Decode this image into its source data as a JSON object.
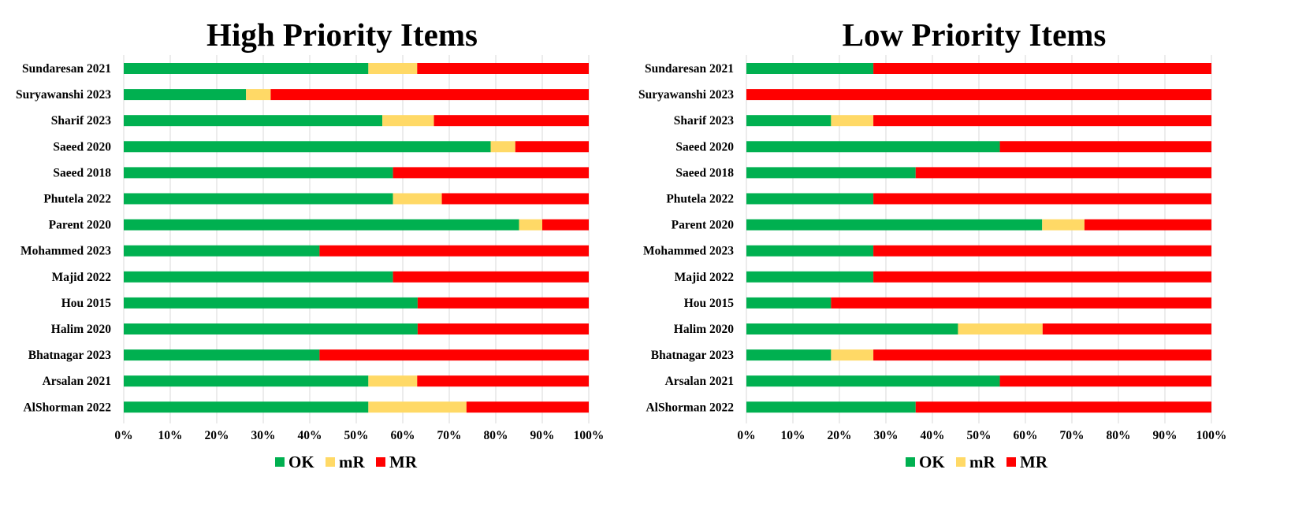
{
  "chart_data": [
    {
      "type": "bar",
      "orientation": "horizontal",
      "stacked": "percent",
      "title": "High Priority Items",
      "categories": [
        "Sundaresan 2021",
        "Suryawanshi 2023",
        "Sharif 2023",
        "Saeed 2020",
        "Saeed 2018",
        "Phutela 2022",
        "Parent 2020",
        "Mohammed 2023",
        "Majid 2022",
        "Hou 2015",
        "Halim 2020",
        "Bhatnagar 2023",
        "Arsalan 2021",
        "AlShorman 2022"
      ],
      "series": [
        {
          "name": "OK",
          "color": "#00b050",
          "values": [
            52.6,
            26.3,
            55.6,
            78.9,
            57.9,
            57.9,
            85.0,
            42.1,
            57.9,
            63.2,
            63.2,
            42.1,
            52.6,
            52.6
          ]
        },
        {
          "name": "mR",
          "color": "#ffd966",
          "values": [
            10.5,
            5.3,
            11.1,
            5.3,
            0,
            10.5,
            5.0,
            0,
            0,
            0,
            0,
            0,
            10.5,
            21.1
          ]
        },
        {
          "name": "MR",
          "color": "#ff0000",
          "values": [
            36.9,
            68.4,
            33.3,
            15.8,
            42.1,
            31.6,
            10.0,
            57.9,
            42.1,
            36.8,
            36.8,
            57.9,
            36.9,
            26.3
          ]
        }
      ],
      "xticks": [
        "0%",
        "10%",
        "20%",
        "30%",
        "40%",
        "50%",
        "60%",
        "70%",
        "80%",
        "90%",
        "100%"
      ],
      "xlim": [
        0,
        100
      ],
      "legend": "bottom-center",
      "grid": true
    },
    {
      "type": "bar",
      "orientation": "horizontal",
      "stacked": "percent",
      "title": "Low Priority Items",
      "categories": [
        "Sundaresan 2021",
        "Suryawanshi 2023",
        "Sharif 2023",
        "Saeed 2020",
        "Saeed 2018",
        "Phutela 2022",
        "Parent 2020",
        "Mohammed 2023",
        "Majid 2022",
        "Hou 2015",
        "Halim 2020",
        "Bhatnagar 2023",
        "Arsalan 2021",
        "AlShorman 2022"
      ],
      "series": [
        {
          "name": "OK",
          "color": "#00b050",
          "values": [
            27.3,
            0,
            18.2,
            54.5,
            36.4,
            27.3,
            63.6,
            27.3,
            27.3,
            18.2,
            45.5,
            18.2,
            54.5,
            36.4
          ]
        },
        {
          "name": "mR",
          "color": "#ffd966",
          "values": [
            0,
            0,
            9.1,
            0,
            0,
            0,
            9.1,
            0,
            0,
            0,
            18.2,
            9.1,
            0,
            0
          ]
        },
        {
          "name": "MR",
          "color": "#ff0000",
          "values": [
            72.7,
            100,
            72.7,
            45.5,
            63.6,
            72.7,
            27.3,
            72.7,
            72.7,
            81.8,
            36.3,
            72.7,
            45.5,
            63.6
          ]
        }
      ],
      "xticks": [
        "0%",
        "10%",
        "20%",
        "30%",
        "40%",
        "50%",
        "60%",
        "70%",
        "80%",
        "90%",
        "100%"
      ],
      "xlim": [
        0,
        100
      ],
      "legend": "bottom-center",
      "grid": true
    }
  ]
}
